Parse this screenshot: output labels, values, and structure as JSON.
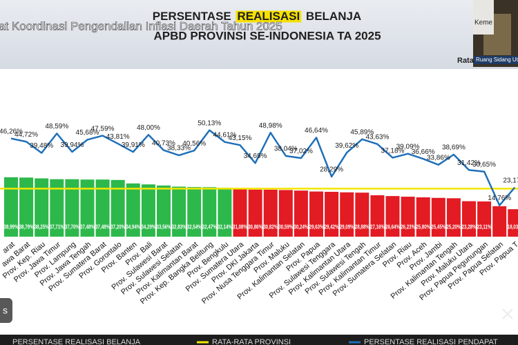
{
  "screen": {
    "ticker": "at Koordinasi Pengendalian Inflasi Daerah Tahun 2025",
    "video_thumb": {
      "top_text": "Keme",
      "side_text": "Rata",
      "room": "Ruang Sidang Uta"
    },
    "left_button": "s"
  },
  "chart_data": {
    "type": "bar",
    "title": [
      "PERSENTASE",
      "REALISASI",
      "BELANJA"
    ],
    "subtitle": "APBD PROVINSI SE-INDONESIA TA 2025",
    "categories": [
      "arat",
      "awa Barat",
      "Prov. Kep. Riau",
      "Prov. Jawa Timur",
      "Prov. Lampung",
      "Prov. Jawa Tengah",
      "Prov. Sumatera Barat",
      "Prov. Gorontalo",
      "Prov. Banten",
      "Prov. Bali",
      "Prov. Sulawesi Barat",
      "Prov. Sulawesi Selatan",
      "Prov. Kalimantan Barat",
      "Prov. Kep. Bangka Belitung",
      "Prov. Bengkulu",
      "Prov. Sumatera Utara",
      "Prov. DKI Jakarta",
      "Prov. Nusa Tenggara Timur",
      "Prov. Maluku",
      "Prov. Kalimantan Selatan",
      "Prov. Papua",
      "Prov. Sulawesi Tenggara",
      "Prov. Kalimantan Utara",
      "Prov. Sulawesi Tengah",
      "Prov. Kalimantan Timur",
      "Prov. Sumatera Selatan",
      "Prov. Riau",
      "Prov. Aceh",
      "Prov. Jambi",
      "Prov. Kalimantan Tengah",
      "Prov. Maluku Utara",
      "Prov. Papua Pegunungan",
      "Prov. Papua Selatan",
      "Prov. Papua T"
    ],
    "series": [
      {
        "name": "PERSENTASE REALISASI BELANJA",
        "color": "#2db84b",
        "below_color": "#e31b23",
        "values": [
          38.99,
          38.79,
          38.25,
          37.71,
          37.7,
          37.48,
          37.48,
          37.2,
          34.94,
          34.29,
          33.56,
          32.83,
          32.54,
          32.47,
          32.14,
          31.08,
          30.86,
          30.82,
          30.59,
          30.24,
          29.63,
          29.42,
          29.09,
          28.88,
          27.16,
          26.64,
          26.23,
          25.8,
          25.45,
          25.2,
          23.28,
          23.11,
          20,
          18.03
        ],
        "value_labels": [
          "38,99%",
          "38,79%",
          "38,25%",
          "37,71%",
          "37,70%",
          "37,48%",
          "37,48%",
          "37,20%",
          "34,94%",
          "34,29%",
          "33,56%",
          "32,83%",
          "32,54%",
          "32,47%",
          "32,14%",
          "31,08%",
          "30,86%",
          "30,82%",
          "30,59%",
          "30,24%",
          "29,63%",
          "29,42%",
          "29,09%",
          "28,88%",
          "27,16%",
          "26,64%",
          "26,23%",
          "25,80%",
          "25,45%",
          "25,20%",
          "23,28%",
          "23,11%",
          null,
          "18,03%"
        ]
      },
      {
        "name": "RATA-RATA PROVINSI",
        "color": "#f2e600",
        "value": 31.5
      },
      {
        "name": "PERSENTASE REALISASI PENDAPAT",
        "color": "#1f6fb8",
        "axis": "y2",
        "values": [
          46.26,
          44.72,
          39.48,
          48.59,
          39.94,
          45.68,
          47.59,
          43.81,
          39.91,
          48.0,
          40.73,
          38.33,
          40.56,
          50.13,
          44.61,
          43.15,
          34.69,
          48.98,
          38.04,
          37.02,
          46.64,
          28.29,
          39.62,
          45.89,
          43.63,
          37.18,
          39.09,
          36.66,
          33.86,
          38.69,
          31.42,
          30.65,
          14.76,
          23.17
        ],
        "value_labels": [
          "46,26%",
          "44,72%",
          "39,48%",
          "48,59%",
          "39,94%",
          "45,68%",
          "47,59%",
          "43,81%",
          "39,91%",
          "48,00%",
          "40,73%",
          "38,33%",
          "40,56%",
          "50,13%",
          "44,61%",
          "43,15%",
          "34,69%",
          "48,98%",
          "38,04%",
          "37,02%",
          "46,64%",
          "28,29%",
          "39,62%",
          "45,89%",
          "43,63%",
          "37,18%",
          "39,09%",
          "36,66%",
          "33,86%",
          "38,69%",
          "31,42%",
          "30,65%",
          "14,76%",
          "23,17%"
        ]
      }
    ],
    "ylim": [
      0,
      110
    ],
    "y2lim": [
      0,
      79
    ]
  }
}
